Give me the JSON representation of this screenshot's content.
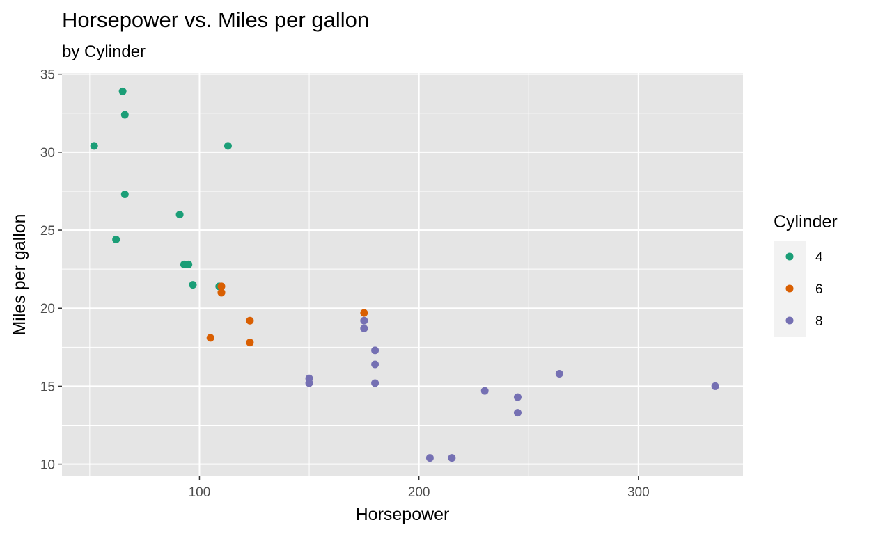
{
  "chart_data": {
    "type": "scatter",
    "title": "Horsepower vs. Miles per gallon",
    "subtitle": "by Cylinder",
    "xlabel": "Horsepower",
    "ylabel": "Miles per gallon",
    "xlim": [
      37.35,
      347.65
    ],
    "ylim": [
      9.225,
      35.075
    ],
    "x_ticks": [
      100,
      200,
      300
    ],
    "y_ticks": [
      10,
      15,
      20,
      25,
      30,
      35
    ],
    "grid": true,
    "legend": {
      "title": "Cylinder",
      "position": "right",
      "entries": [
        "4",
        "6",
        "8"
      ]
    },
    "colors": {
      "4": "#1b9e77",
      "6": "#d95f02",
      "8": "#7570b3",
      "panel": "#e5e5e5",
      "grid": "#ffffff"
    },
    "series": [
      {
        "name": "4",
        "points": [
          [
            93,
            22.8
          ],
          [
            62,
            24.4
          ],
          [
            95,
            22.8
          ],
          [
            66,
            32.4
          ],
          [
            52,
            30.4
          ],
          [
            65,
            33.9
          ],
          [
            97,
            21.5
          ],
          [
            66,
            27.3
          ],
          [
            91,
            26.0
          ],
          [
            113,
            30.4
          ],
          [
            109,
            21.4
          ]
        ]
      },
      {
        "name": "6",
        "points": [
          [
            110,
            21.0
          ],
          [
            110,
            21.0
          ],
          [
            110,
            21.4
          ],
          [
            105,
            18.1
          ],
          [
            123,
            19.2
          ],
          [
            123,
            17.8
          ],
          [
            175,
            19.7
          ]
        ]
      },
      {
        "name": "8",
        "points": [
          [
            175,
            18.7
          ],
          [
            245,
            14.3
          ],
          [
            180,
            16.4
          ],
          [
            180,
            17.3
          ],
          [
            180,
            15.2
          ],
          [
            205,
            10.4
          ],
          [
            215,
            10.4
          ],
          [
            230,
            14.7
          ],
          [
            150,
            15.5
          ],
          [
            150,
            15.2
          ],
          [
            245,
            13.3
          ],
          [
            175,
            19.2
          ],
          [
            264,
            15.8
          ],
          [
            335,
            15.0
          ]
        ]
      }
    ]
  }
}
